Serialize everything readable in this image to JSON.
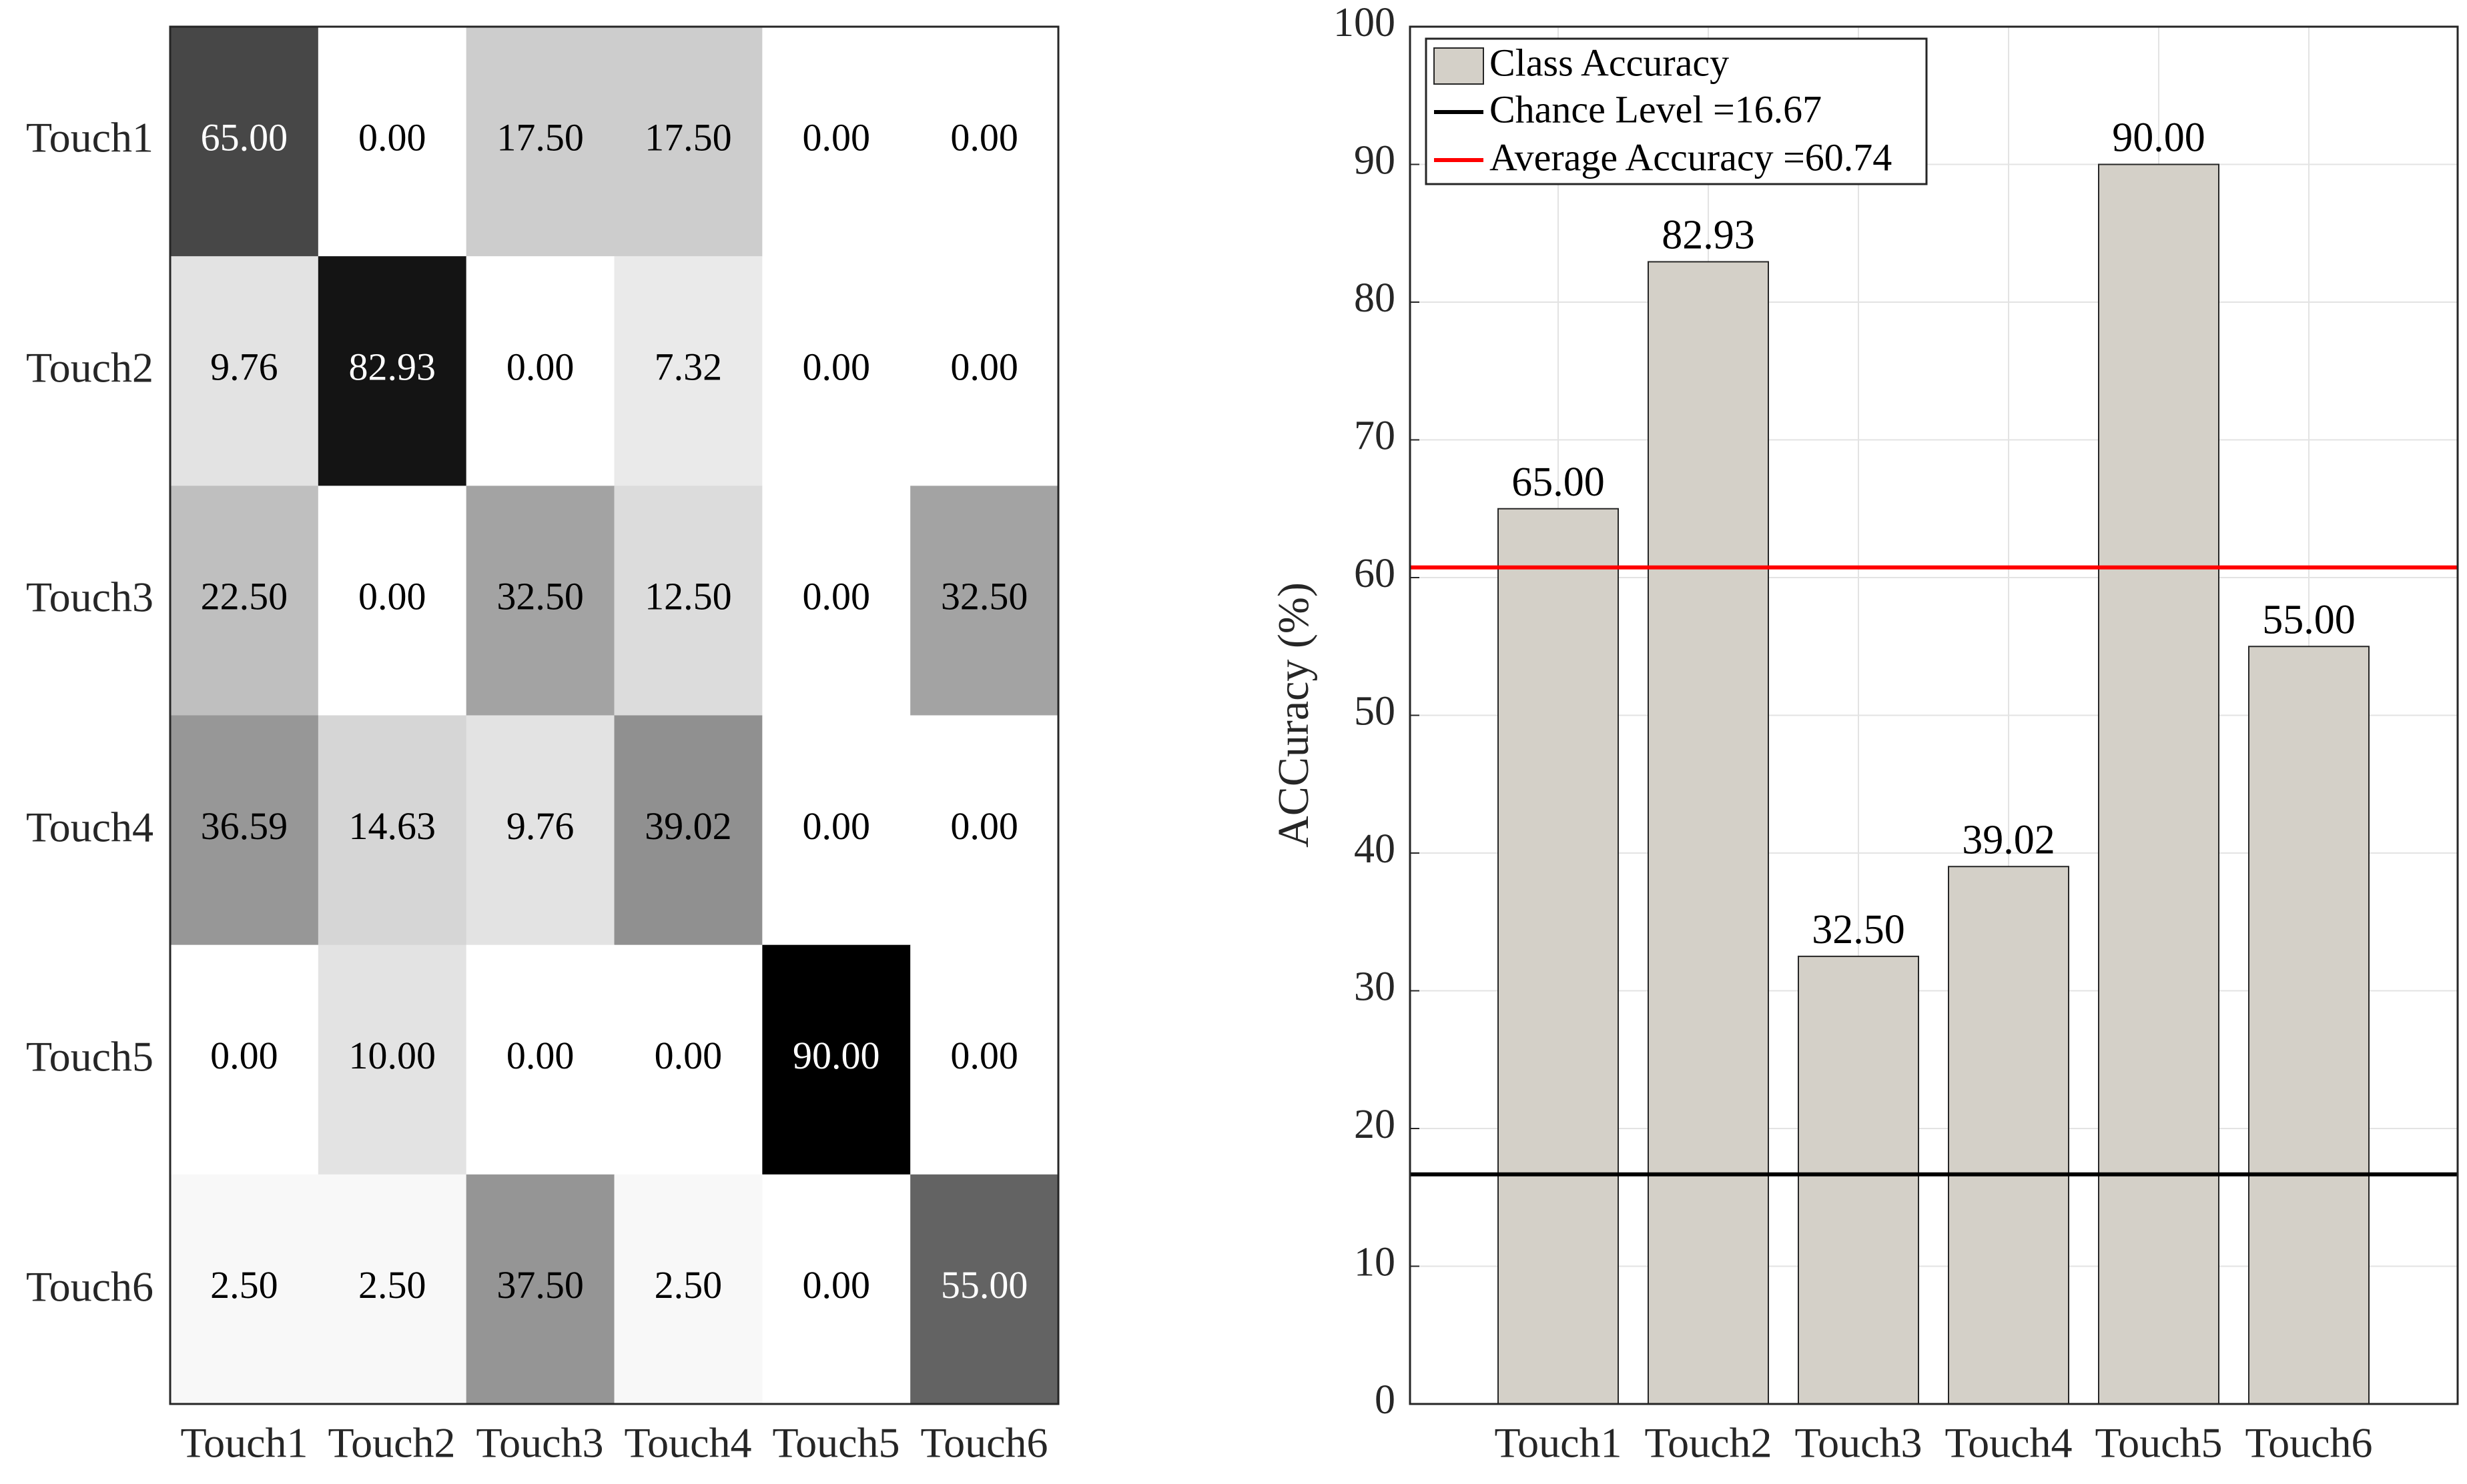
{
  "chart_data": [
    {
      "type": "heatmap",
      "title": "",
      "row_labels": [
        "Touch1",
        "Touch2",
        "Touch3",
        "Touch4",
        "Touch5",
        "Touch6"
      ],
      "col_labels": [
        "Touch1",
        "Touch2",
        "Touch3",
        "Touch4",
        "Touch5",
        "Touch6"
      ],
      "cell_labels": [
        [
          "65.00",
          "0.00",
          "17.50",
          "17.50",
          "0.00",
          "0.00"
        ],
        [
          "9.76",
          "82.93",
          "0.00",
          "7.32",
          "0.00",
          "0.00"
        ],
        [
          "22.50",
          "0.00",
          "32.50",
          "12.50",
          "0.00",
          "32.50"
        ],
        [
          "36.59",
          "14.63",
          "9.76",
          "39.02",
          "0.00",
          "0.00"
        ],
        [
          "0.00",
          "10.00",
          "0.00",
          "0.00",
          "90.00",
          "0.00"
        ],
        [
          "2.50",
          "2.50",
          "37.50",
          "2.50",
          "0.00",
          "55.00"
        ]
      ],
      "colormap": "gray-reversed",
      "value_range": [
        0,
        90
      ]
    },
    {
      "type": "bar",
      "categories": [
        "Touch1",
        "Touch2",
        "Touch3",
        "Touch4",
        "Touch5",
        "Touch6"
      ],
      "values": [
        65.0,
        82.93,
        32.5,
        39.02,
        90.0,
        55.0
      ],
      "value_labels": [
        "65.00",
        "82.93",
        "32.50",
        "39.02",
        "90.00",
        "55.00"
      ],
      "title": "",
      "xlabel": "",
      "ylabel": "ACCuracy (%)",
      "ylim": [
        0,
        100
      ],
      "yticks": [
        "0",
        "10",
        "20",
        "30",
        "40",
        "50",
        "60",
        "70",
        "80",
        "90",
        "100"
      ],
      "grid": true,
      "legend_position": "top-left",
      "legend": {
        "bar_label": "Class Accuracy",
        "chance_label": "Chance Level =16.67",
        "average_label": "Average Accuracy =60.74"
      },
      "reference_lines": [
        {
          "name": "Chance Level",
          "value": 16.67,
          "color": "#000000"
        },
        {
          "name": "Average Accuracy",
          "value": 60.74,
          "color": "#ff0000"
        }
      ],
      "bar_color": "#d4d0c8"
    }
  ]
}
